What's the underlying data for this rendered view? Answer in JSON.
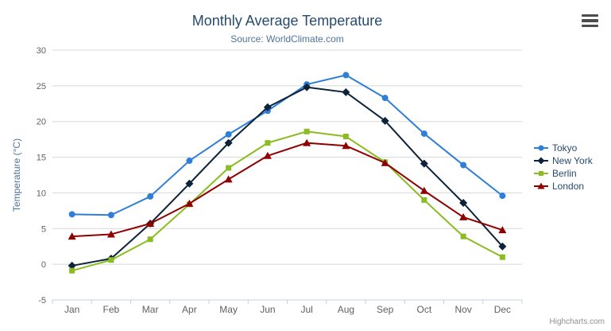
{
  "chart_data": {
    "type": "line",
    "title": "Monthly Average Temperature",
    "subtitle": "Source: WorldClimate.com",
    "xlabel": "",
    "ylabel": "Temperature (°C)",
    "ylim": [
      -5,
      30
    ],
    "ytick_step": 5,
    "grid": true,
    "legend_position": "right",
    "categories": [
      "Jan",
      "Feb",
      "Mar",
      "Apr",
      "May",
      "Jun",
      "Jul",
      "Aug",
      "Sep",
      "Oct",
      "Nov",
      "Dec"
    ],
    "series": [
      {
        "name": "Tokyo",
        "color": "#2f7ed8",
        "marker": "circle",
        "values": [
          7.0,
          6.9,
          9.5,
          14.5,
          18.2,
          21.5,
          25.2,
          26.5,
          23.3,
          18.3,
          13.9,
          9.6
        ]
      },
      {
        "name": "New York",
        "color": "#0d233a",
        "marker": "diamond",
        "values": [
          -0.2,
          0.8,
          5.7,
          11.3,
          17.0,
          22.0,
          24.8,
          24.1,
          20.1,
          14.1,
          8.6,
          2.5
        ]
      },
      {
        "name": "Berlin",
        "color": "#8bbc21",
        "marker": "square",
        "values": [
          -0.9,
          0.6,
          3.5,
          8.4,
          13.5,
          17.0,
          18.6,
          17.9,
          14.3,
          9.0,
          3.9,
          1.0
        ]
      },
      {
        "name": "London",
        "color": "#910000",
        "marker": "triangle",
        "values": [
          3.9,
          4.2,
          5.7,
          8.5,
          11.9,
          15.2,
          17.0,
          16.6,
          14.2,
          10.3,
          6.6,
          4.8
        ]
      }
    ]
  },
  "credits": "Highcharts.com",
  "colors": {
    "title": "#274b6d",
    "subtitle": "#4d759e",
    "axis_title": "#4d759e",
    "axis_label": "#606060",
    "gridline": "#d8d8d8",
    "axis_line": "#c0d0e0",
    "legend_text": "#274b6d",
    "credits": "#909090",
    "menu_icon": "#4d4d4d",
    "background": "#ffffff"
  }
}
